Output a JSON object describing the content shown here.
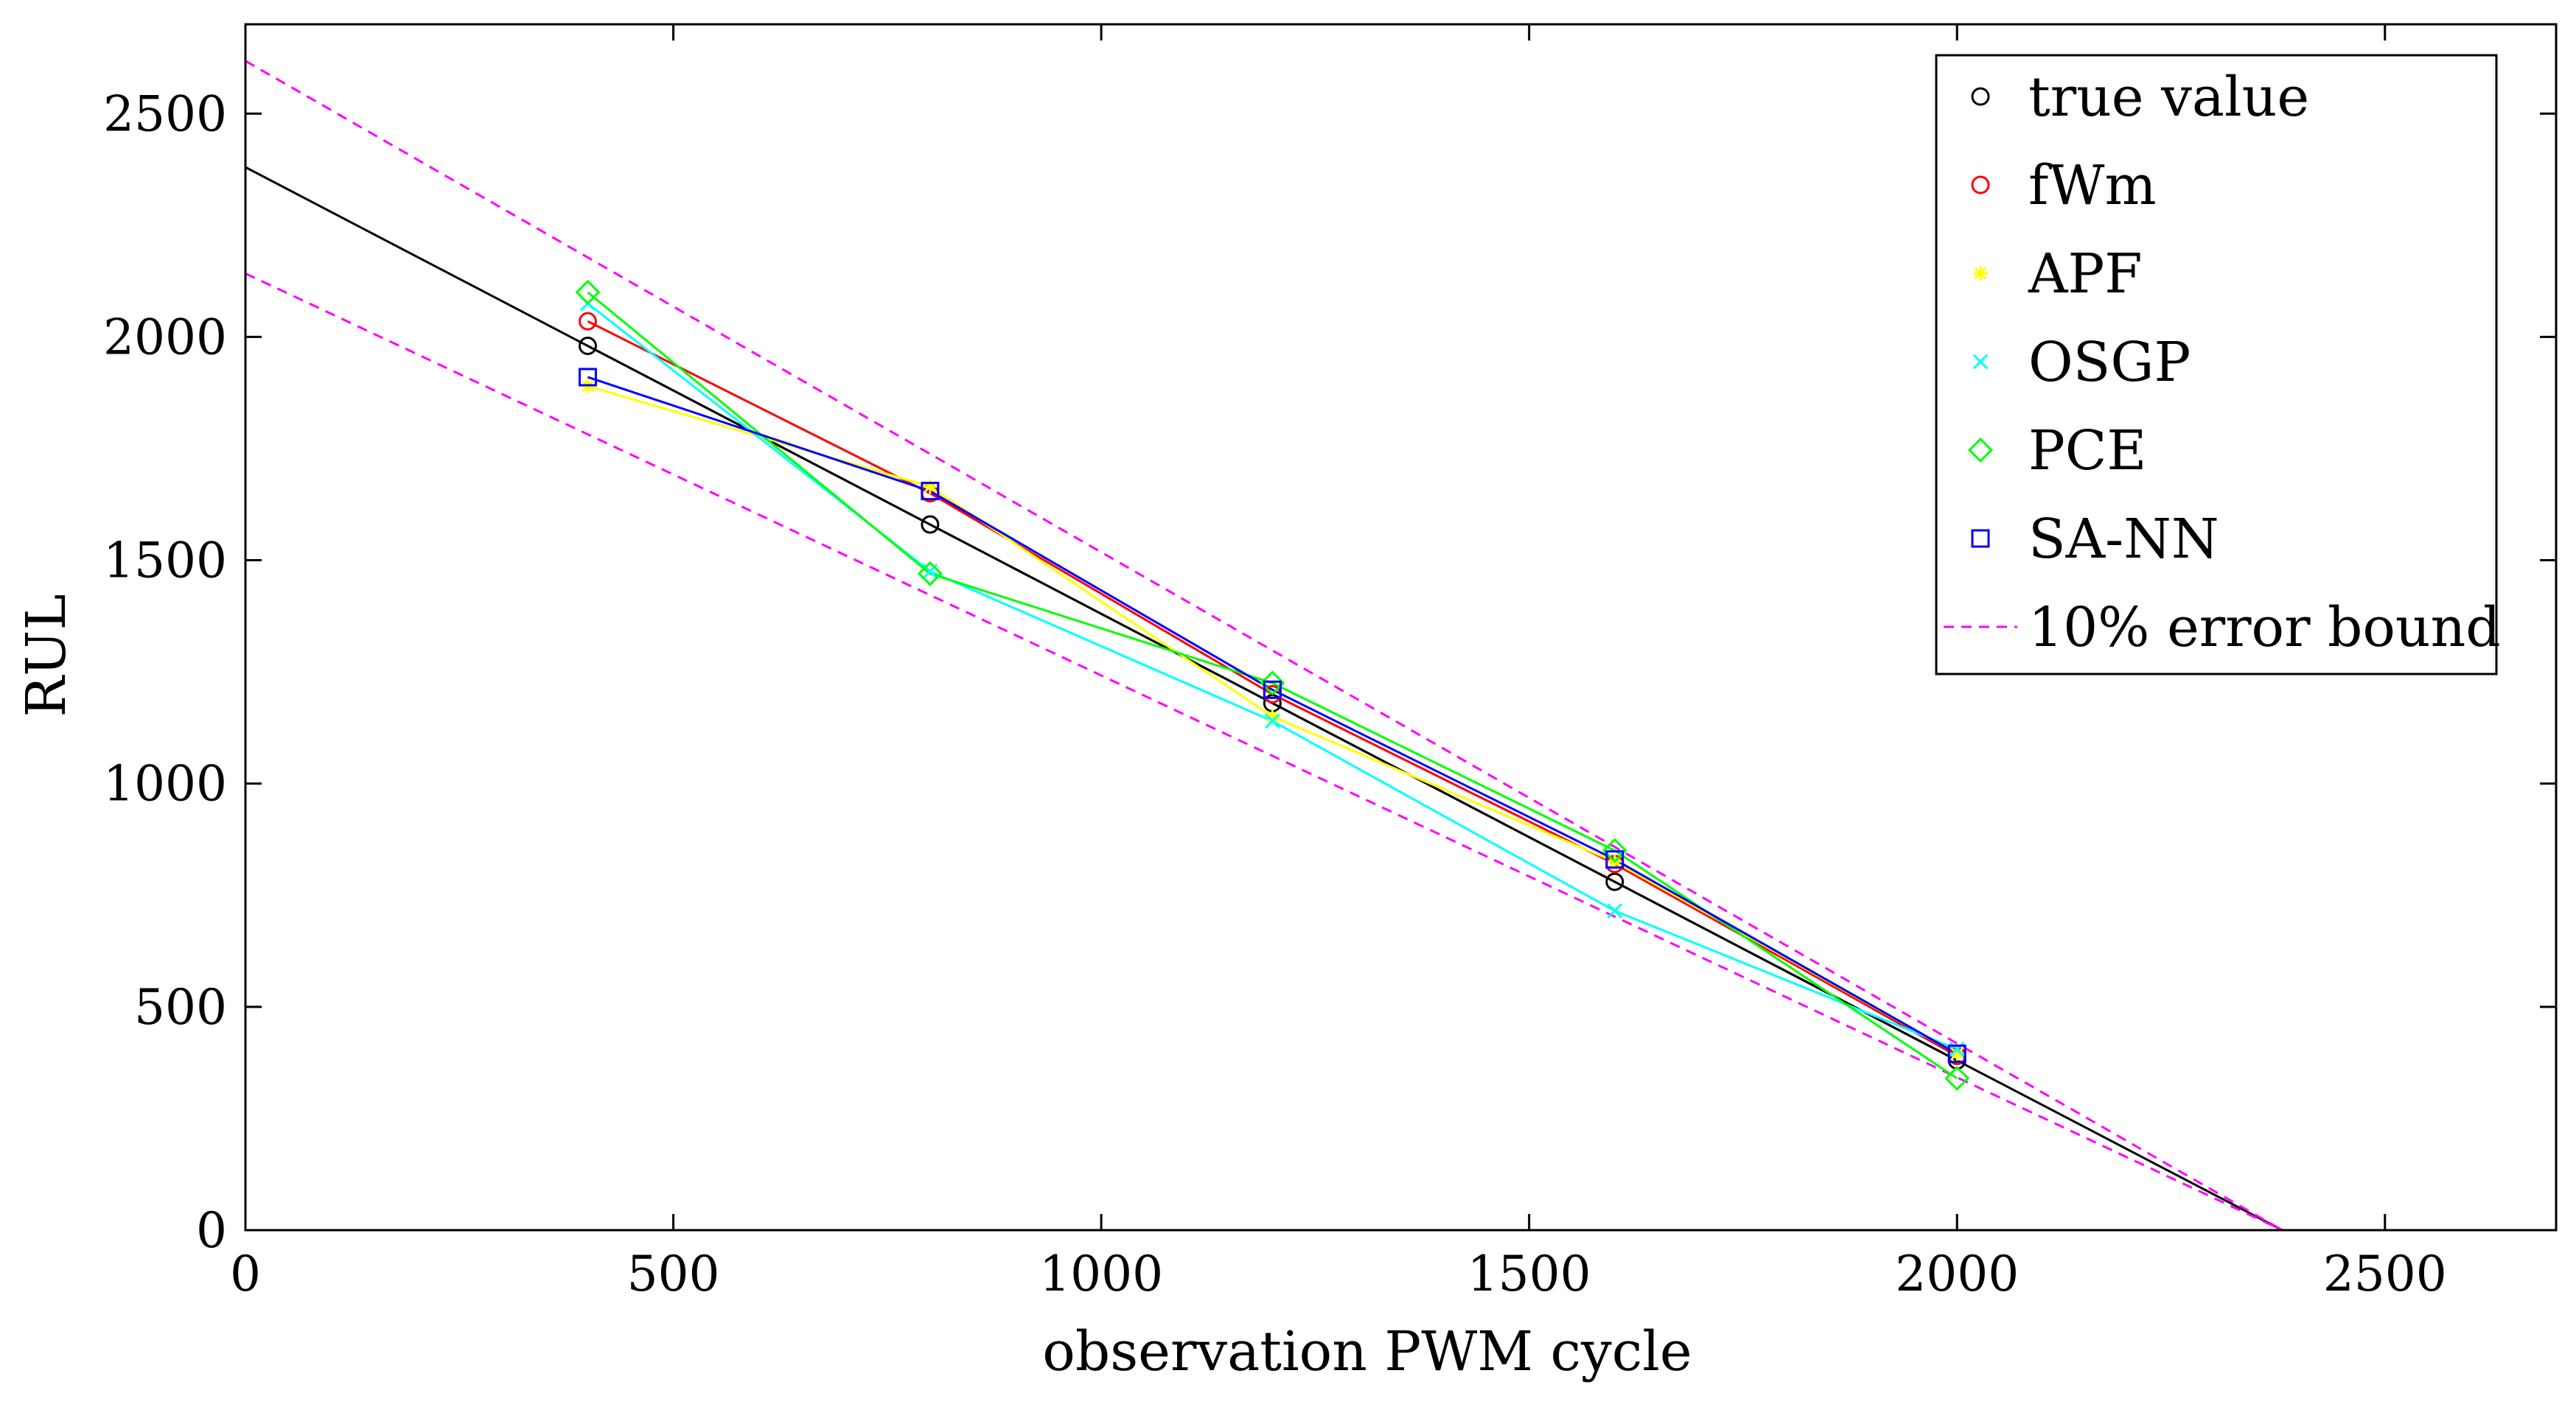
{
  "chart_data": {
    "type": "line",
    "title": "",
    "xlabel": "observation PWM cycle",
    "ylabel": "RUL",
    "xlim": [
      0,
      2700
    ],
    "ylim": [
      0,
      2700
    ],
    "xticks": [
      0,
      500,
      1000,
      1500,
      2000,
      2500
    ],
    "yticks": [
      0,
      500,
      1000,
      1500,
      2000,
      2500
    ],
    "grid": false,
    "legend_position": "top-right",
    "series": [
      {
        "name": "true value",
        "color": "#000000",
        "marker": "circle",
        "x": [
          400,
          800,
          1200,
          1600,
          2000
        ],
        "y": [
          1980,
          1580,
          1180,
          780,
          380
        ]
      },
      {
        "name": "fWm",
        "color": "#ff0000",
        "marker": "circle",
        "x": [
          400,
          800,
          1200,
          1600,
          2000
        ],
        "y": [
          2035,
          1650,
          1200,
          820,
          390
        ]
      },
      {
        "name": "APF",
        "color": "#ffff00",
        "marker": "star",
        "x": [
          400,
          800,
          1200,
          1600,
          2000
        ],
        "y": [
          1890,
          1665,
          1150,
          825,
          395
        ]
      },
      {
        "name": "OSGP",
        "color": "#00ffff",
        "marker": "x",
        "x": [
          400,
          800,
          1200,
          1600,
          2000
        ],
        "y": [
          2075,
          1475,
          1140,
          715,
          405
        ]
      },
      {
        "name": "PCE",
        "color": "#00ff00",
        "marker": "diamond",
        "x": [
          400,
          800,
          1200,
          1600,
          2000
        ],
        "y": [
          2100,
          1470,
          1225,
          850,
          340
        ]
      },
      {
        "name": "SA-NN",
        "color": "#0000ff",
        "marker": "square",
        "x": [
          400,
          800,
          1200,
          1600,
          2000
        ],
        "y": [
          1910,
          1655,
          1210,
          830,
          395
        ]
      }
    ],
    "reference_lines": [
      {
        "name": "true value trend",
        "color": "#000000",
        "dash": "solid",
        "x": [
          0,
          2380
        ],
        "y": [
          2380,
          0
        ],
        "in_legend": false
      },
      {
        "name": "10% error bound",
        "color": "#ff00ff",
        "dash": "dashed",
        "x": [
          0,
          2380
        ],
        "y": [
          2618,
          0
        ],
        "in_legend": true
      },
      {
        "name": "10% error bound",
        "color": "#ff00ff",
        "dash": "dashed",
        "x": [
          0,
          2380
        ],
        "y": [
          2142,
          0
        ],
        "in_legend": false
      }
    ],
    "legend": [
      {
        "label": "true value",
        "color": "#000000",
        "marker": "circle"
      },
      {
        "label": "fWm",
        "color": "#ff0000",
        "marker": "circle"
      },
      {
        "label": "APF",
        "color": "#ffff00",
        "marker": "star"
      },
      {
        "label": "OSGP",
        "color": "#00ffff",
        "marker": "x"
      },
      {
        "label": "PCE",
        "color": "#00ff00",
        "marker": "diamond"
      },
      {
        "label": "SA-NN",
        "color": "#0000ff",
        "marker": "square"
      },
      {
        "label": "10% error bound",
        "color": "#ff00ff",
        "line": "dashed"
      }
    ]
  }
}
